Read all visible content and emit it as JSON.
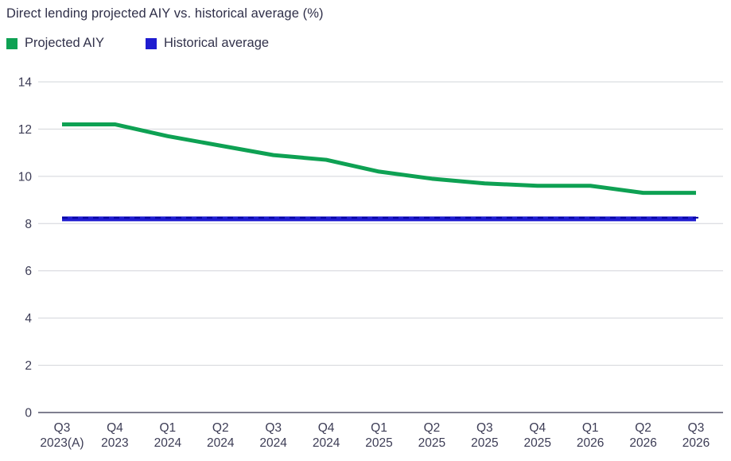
{
  "chart_data": {
    "type": "line",
    "title": "Direct lending projected AIY vs. historical average (%)",
    "categories": [
      [
        "Q3",
        "2023(A)"
      ],
      [
        "Q4",
        "2023"
      ],
      [
        "Q1",
        "2024"
      ],
      [
        "Q2",
        "2024"
      ],
      [
        "Q3",
        "2024"
      ],
      [
        "Q4",
        "2024"
      ],
      [
        "Q1",
        "2025"
      ],
      [
        "Q2",
        "2025"
      ],
      [
        "Q3",
        "2025"
      ],
      [
        "Q4",
        "2025"
      ],
      [
        "Q1",
        "2026"
      ],
      [
        "Q2",
        "2026"
      ],
      [
        "Q3",
        "2026"
      ]
    ],
    "series": [
      {
        "name": "Projected AIY",
        "color": "#0ea153",
        "values": [
          12.2,
          12.2,
          11.7,
          11.3,
          10.9,
          10.7,
          10.2,
          9.9,
          9.7,
          9.6,
          9.6,
          9.3,
          9.3
        ]
      },
      {
        "name": "Historical average",
        "color": "#1f1cd0",
        "overlay_color": "#0400a0",
        "values": [
          8.2,
          8.2,
          8.2,
          8.2,
          8.2,
          8.2,
          8.2,
          8.2,
          8.2,
          8.2,
          8.2,
          8.2,
          8.2
        ]
      }
    ],
    "ylim": [
      0,
      14
    ],
    "yticks": [
      0,
      2,
      4,
      6,
      8,
      10,
      12,
      14
    ],
    "grid": "horizontal",
    "legend_position": "top-left",
    "colors": {
      "text": "#32324b",
      "tick_label": "#3c3c55",
      "axis_line": "#55556a",
      "gridline": "#d2d4da",
      "background": "#ffffff"
    }
  }
}
